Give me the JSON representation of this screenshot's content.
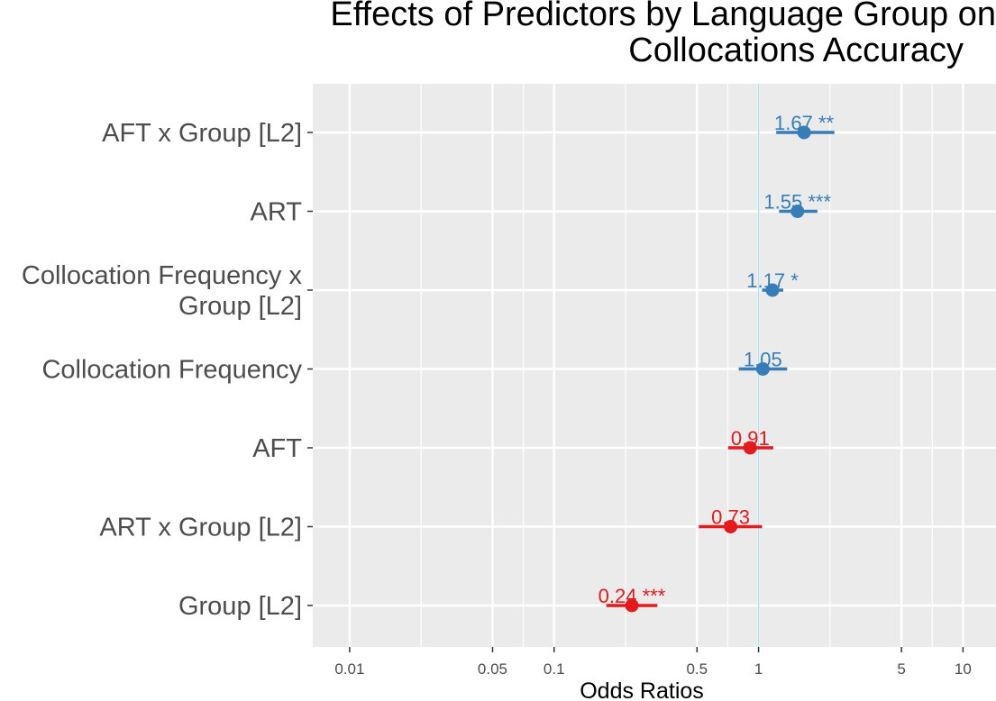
{
  "chart_data": {
    "type": "forest",
    "title": "Effects of Predictors by Language Group on\nCollocations Accuracy",
    "title_lines": [
      "Effects of Predictors by Language Group on",
      "Collocations Accuracy"
    ],
    "xlabel": "Odds Ratios",
    "ylabel": "",
    "x_scale": "log10",
    "xlim": [
      0.0066,
      14.5
    ],
    "x_ticks": [
      0.01,
      0.05,
      0.1,
      0.5,
      1,
      5,
      10
    ],
    "x_tick_labels": [
      "0.01",
      "0.05",
      "0.1",
      "0.5",
      "1",
      "5",
      "10"
    ],
    "reference_line": 1,
    "grid": true,
    "colors": {
      "positive": "#377EB8",
      "negative": "#E41A1C",
      "panel": "#EBEBEB",
      "grid": "#FFFFFF",
      "reference": "#B3E2E8"
    },
    "rows": [
      {
        "label_lines": [
          "AFT x Group [L2]"
        ],
        "estimate": 1.67,
        "ci_low": 1.22,
        "ci_high": 2.35,
        "label": "1.67 **",
        "direction": "positive"
      },
      {
        "label_lines": [
          "ART"
        ],
        "estimate": 1.55,
        "ci_low": 1.26,
        "ci_high": 1.94,
        "label": "1.55 ***",
        "direction": "positive"
      },
      {
        "label_lines": [
          "Collocation Frequency x",
          "Group [L2]"
        ],
        "estimate": 1.17,
        "ci_low": 1.04,
        "ci_high": 1.32,
        "label": "1.17 *",
        "direction": "positive"
      },
      {
        "label_lines": [
          "Collocation Frequency"
        ],
        "estimate": 1.05,
        "ci_low": 0.8,
        "ci_high": 1.38,
        "label": "1.05",
        "direction": "positive"
      },
      {
        "label_lines": [
          "AFT"
        ],
        "estimate": 0.91,
        "ci_low": 0.71,
        "ci_high": 1.18,
        "label": "0.91",
        "direction": "negative"
      },
      {
        "label_lines": [
          "ART x Group [L2]"
        ],
        "estimate": 0.73,
        "ci_low": 0.51,
        "ci_high": 1.04,
        "label": "0.73",
        "direction": "negative"
      },
      {
        "label_lines": [
          "Group [L2]"
        ],
        "estimate": 0.24,
        "ci_low": 0.18,
        "ci_high": 0.32,
        "label": "0.24 ***",
        "direction": "negative"
      }
    ]
  }
}
